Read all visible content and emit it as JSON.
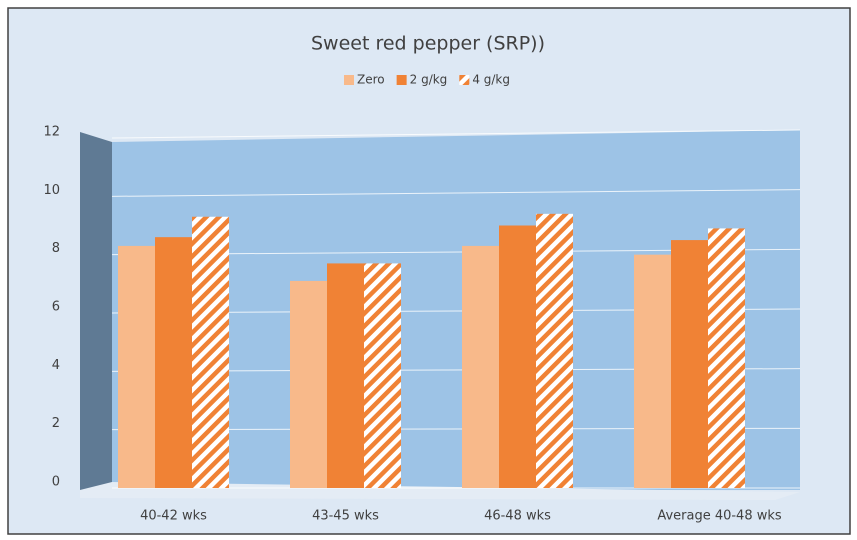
{
  "chart_data": {
    "type": "bar",
    "title": "Sweet red pepper (SRP))",
    "categories": [
      "40-42 wks",
      "43-45 wks",
      "46-48 wks",
      "Average 40-48 wks"
    ],
    "series": [
      {
        "name": "Zero",
        "color": "#f8b98a",
        "values": [
          8.3,
          7.1,
          8.3,
          8.0
        ]
      },
      {
        "name": "2 g/kg",
        "color": "#f08235",
        "values": [
          8.6,
          7.7,
          9.0,
          8.5
        ]
      },
      {
        "name": "4 g/kg",
        "color": "#f08235",
        "hatch": true,
        "values": [
          9.3,
          7.7,
          9.4,
          8.9
        ]
      }
    ],
    "ylim": [
      0,
      12
    ],
    "yticks": [
      0,
      2,
      4,
      6,
      8,
      10,
      12
    ],
    "grid": true,
    "legend": "top"
  }
}
